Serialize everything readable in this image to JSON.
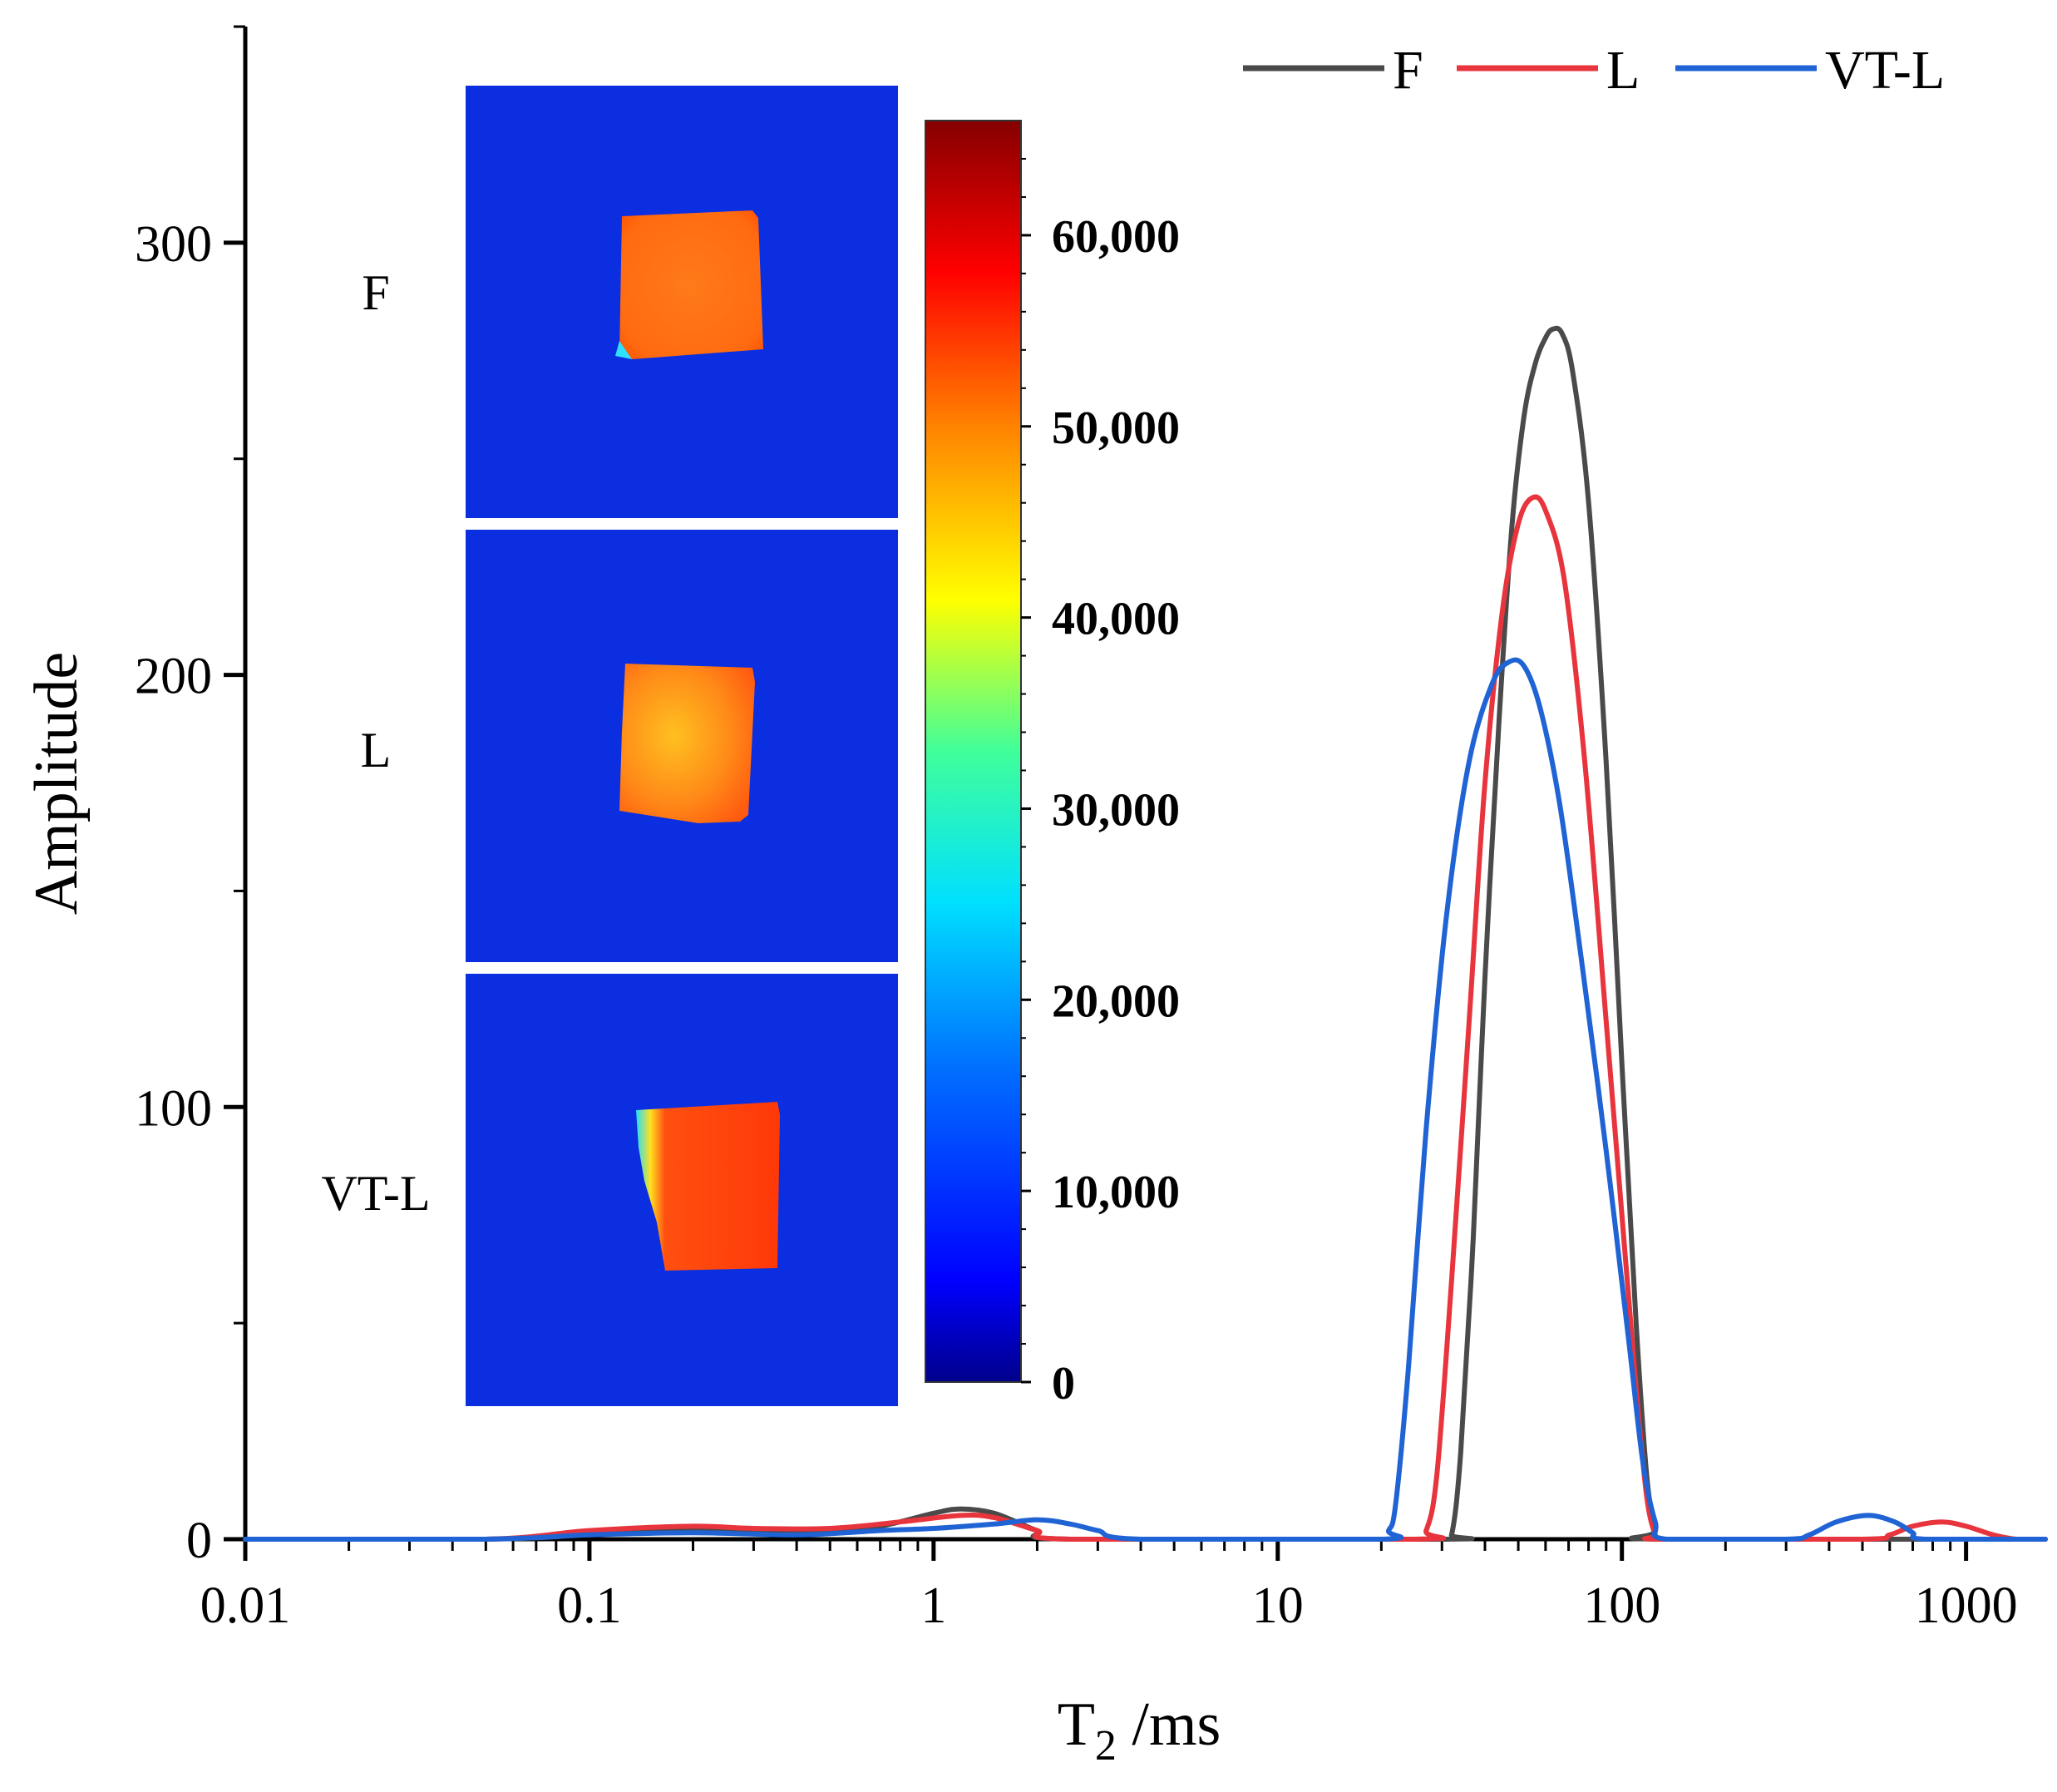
{
  "chart_data": {
    "type": "line",
    "xlabel": "T",
    "xlabel_sub": "2",
    "xlabel_unit": " /ms",
    "ylabel": "Amplitude",
    "xscale": "log",
    "xlim": [
      0.01,
      1700
    ],
    "ylim": [
      0,
      350
    ],
    "xticks": [
      {
        "value": 0.01,
        "label": "0.01"
      },
      {
        "value": 0.1,
        "label": "0.1"
      },
      {
        "value": 1,
        "label": "1"
      },
      {
        "value": 10,
        "label": "10"
      },
      {
        "value": 100,
        "label": "100"
      },
      {
        "value": 1000,
        "label": "1000"
      }
    ],
    "yticks": [
      {
        "value": 0,
        "label": "0"
      },
      {
        "value": 100,
        "label": "100"
      },
      {
        "value": 200,
        "label": "200"
      },
      {
        "value": 300,
        "label": "300"
      }
    ],
    "legend_position": "top-right",
    "series": [
      {
        "name": "F",
        "color": "#4a4a4a",
        "points": [
          [
            0.01,
            0
          ],
          [
            0.05,
            0
          ],
          [
            0.1,
            1
          ],
          [
            0.2,
            2
          ],
          [
            0.3,
            1.5
          ],
          [
            0.5,
            2
          ],
          [
            0.7,
            3
          ],
          [
            1.0,
            6
          ],
          [
            1.2,
            7
          ],
          [
            1.5,
            6
          ],
          [
            2.0,
            2
          ],
          [
            2.5,
            0
          ],
          [
            30,
            0
          ],
          [
            32,
            1
          ],
          [
            34,
            20
          ],
          [
            37,
            70
          ],
          [
            40,
            130
          ],
          [
            44,
            190
          ],
          [
            48,
            235
          ],
          [
            52,
            260
          ],
          [
            56,
            272
          ],
          [
            60,
            278
          ],
          [
            63,
            280
          ],
          [
            67,
            279
          ],
          [
            72,
            270
          ],
          [
            80,
            240
          ],
          [
            90,
            180
          ],
          [
            100,
            110
          ],
          [
            110,
            50
          ],
          [
            118,
            15
          ],
          [
            125,
            2
          ],
          [
            130,
            0
          ],
          [
            1700,
            0
          ]
        ]
      },
      {
        "name": "L",
        "color": "#e8343c",
        "points": [
          [
            0.01,
            0
          ],
          [
            0.05,
            0
          ],
          [
            0.1,
            2
          ],
          [
            0.2,
            3
          ],
          [
            0.3,
            2.5
          ],
          [
            0.5,
            2.5
          ],
          [
            0.8,
            4
          ],
          [
            1.2,
            5.5
          ],
          [
            1.5,
            5
          ],
          [
            2.0,
            2
          ],
          [
            2.5,
            0
          ],
          [
            25,
            0
          ],
          [
            27,
            2
          ],
          [
            29,
            15
          ],
          [
            32,
            60
          ],
          [
            36,
            120
          ],
          [
            40,
            175
          ],
          [
            45,
            215
          ],
          [
            50,
            235
          ],
          [
            55,
            241
          ],
          [
            60,
            238
          ],
          [
            68,
            222
          ],
          [
            78,
            180
          ],
          [
            90,
            120
          ],
          [
            100,
            75
          ],
          [
            110,
            35
          ],
          [
            118,
            10
          ],
          [
            125,
            1
          ],
          [
            130,
            0
          ],
          [
            500,
            0
          ],
          [
            600,
            1
          ],
          [
            700,
            3
          ],
          [
            850,
            4
          ],
          [
            1000,
            3
          ],
          [
            1200,
            1
          ],
          [
            1400,
            0
          ],
          [
            1700,
            0
          ]
        ]
      },
      {
        "name": "VT-L",
        "color": "#1f63d4",
        "points": [
          [
            0.01,
            0
          ],
          [
            0.05,
            0
          ],
          [
            0.1,
            1
          ],
          [
            0.2,
            1.5
          ],
          [
            0.4,
            1
          ],
          [
            0.7,
            2
          ],
          [
            1.0,
            2.5
          ],
          [
            1.5,
            3.5
          ],
          [
            2.0,
            4.5
          ],
          [
            2.5,
            3.5
          ],
          [
            3.0,
            2
          ],
          [
            4.0,
            0
          ],
          [
            20,
            0
          ],
          [
            21,
            2
          ],
          [
            22,
            8
          ],
          [
            24,
            40
          ],
          [
            27,
            95
          ],
          [
            31,
            145
          ],
          [
            36,
            180
          ],
          [
            42,
            198
          ],
          [
            47,
            203
          ],
          [
            52,
            202
          ],
          [
            58,
            192
          ],
          [
            66,
            170
          ],
          [
            76,
            135
          ],
          [
            90,
            90
          ],
          [
            105,
            45
          ],
          [
            115,
            18
          ],
          [
            125,
            4
          ],
          [
            135,
            0
          ],
          [
            300,
            0
          ],
          [
            350,
            1
          ],
          [
            420,
            4
          ],
          [
            520,
            5.5
          ],
          [
            620,
            4
          ],
          [
            700,
            1.5
          ],
          [
            760,
            0
          ],
          [
            1700,
            0
          ]
        ]
      }
    ],
    "inset": {
      "sample_labels": [
        "F",
        "L",
        "VT-L"
      ],
      "colorbar": {
        "min": 0,
        "max": 66000,
        "ticks": [
          {
            "value": 0,
            "label": "0"
          },
          {
            "value": 10000,
            "label": "10,000"
          },
          {
            "value": 20000,
            "label": "20,000"
          },
          {
            "value": 30000,
            "label": "30,000"
          },
          {
            "value": 40000,
            "label": "40,000"
          },
          {
            "value": 50000,
            "label": "50,000"
          },
          {
            "value": 60000,
            "label": "60,000"
          }
        ],
        "colors": [
          "#00008b",
          "#0000ff",
          "#0080ff",
          "#00e5ff",
          "#40ff80",
          "#ffff00",
          "#ff8000",
          "#ff0000",
          "#8b0000"
        ]
      }
    }
  }
}
